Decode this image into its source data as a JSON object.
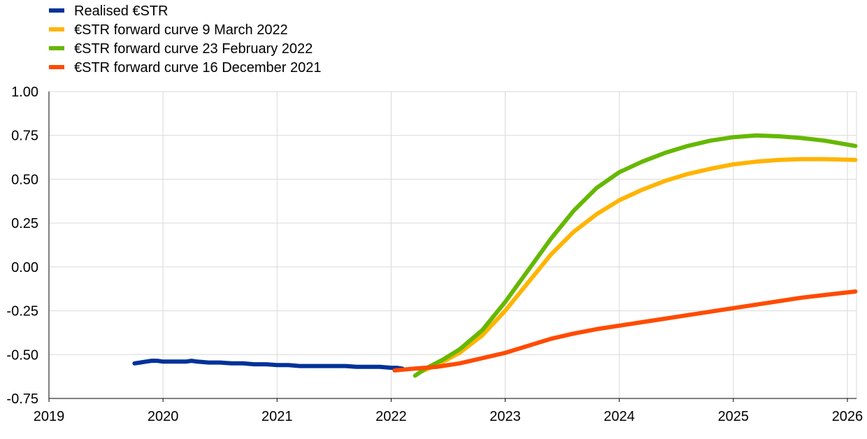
{
  "chart_data": {
    "type": "line",
    "title": "",
    "xlabel": "",
    "ylabel": "",
    "xlim": [
      2019,
      2026.08
    ],
    "ylim": [
      -0.75,
      1.0
    ],
    "x_ticks": [
      "2019",
      "2020",
      "2021",
      "2022",
      "2023",
      "2024",
      "2025",
      "2026"
    ],
    "y_ticks": [
      "1.00",
      "0.75",
      "0.50",
      "0.25",
      "0.00",
      "-0.25",
      "-0.50",
      "-0.75"
    ],
    "grid": true,
    "legend_position": "top-left",
    "series": [
      {
        "name": "Realised €STR",
        "color": "#003299",
        "x": [
          2019.75,
          2019.8,
          2019.85,
          2019.9,
          2019.95,
          2020.0,
          2020.1,
          2020.2,
          2020.25,
          2020.3,
          2020.4,
          2020.5,
          2020.6,
          2020.7,
          2020.8,
          2020.9,
          2021.0,
          2021.1,
          2021.2,
          2021.3,
          2021.4,
          2021.5,
          2021.6,
          2021.7,
          2021.8,
          2021.9,
          2022.0,
          2022.05,
          2022.1
        ],
        "y": [
          -0.55,
          -0.545,
          -0.54,
          -0.535,
          -0.535,
          -0.54,
          -0.54,
          -0.54,
          -0.535,
          -0.54,
          -0.545,
          -0.545,
          -0.55,
          -0.55,
          -0.555,
          -0.555,
          -0.56,
          -0.56,
          -0.565,
          -0.565,
          -0.565,
          -0.565,
          -0.565,
          -0.57,
          -0.57,
          -0.57,
          -0.575,
          -0.575,
          -0.58
        ]
      },
      {
        "name": "€STR forward curve 9 March 2022",
        "color": "#ffb400",
        "x": [
          2022.25,
          2022.4,
          2022.6,
          2022.8,
          2023.0,
          2023.2,
          2023.4,
          2023.6,
          2023.8,
          2024.0,
          2024.2,
          2024.4,
          2024.6,
          2024.8,
          2025.0,
          2025.2,
          2025.4,
          2025.6,
          2025.8,
          2026.07
        ],
        "y": [
          -0.6,
          -0.56,
          -0.49,
          -0.39,
          -0.25,
          -0.09,
          0.07,
          0.2,
          0.3,
          0.38,
          0.44,
          0.49,
          0.53,
          0.56,
          0.585,
          0.6,
          0.61,
          0.615,
          0.615,
          0.61
        ]
      },
      {
        "name": "€STR forward curve 23 February 2022",
        "color": "#65b800",
        "x": [
          2022.21,
          2022.3,
          2022.45,
          2022.6,
          2022.8,
          2023.0,
          2023.2,
          2023.4,
          2023.6,
          2023.8,
          2024.0,
          2024.2,
          2024.4,
          2024.6,
          2024.8,
          2025.0,
          2025.2,
          2025.4,
          2025.6,
          2025.8,
          2026.07
        ],
        "y": [
          -0.62,
          -0.58,
          -0.53,
          -0.47,
          -0.36,
          -0.2,
          -0.02,
          0.16,
          0.32,
          0.45,
          0.54,
          0.6,
          0.65,
          0.69,
          0.72,
          0.74,
          0.75,
          0.745,
          0.735,
          0.72,
          0.69
        ]
      },
      {
        "name": "€STR forward curve 16 December 2021",
        "color": "#ff4b00",
        "x": [
          2022.03,
          2022.2,
          2022.4,
          2022.6,
          2022.8,
          2023.0,
          2023.2,
          2023.4,
          2023.6,
          2023.8,
          2024.0,
          2024.2,
          2024.4,
          2024.6,
          2024.8,
          2025.0,
          2025.2,
          2025.4,
          2025.6,
          2025.8,
          2026.07
        ],
        "y": [
          -0.59,
          -0.58,
          -0.57,
          -0.55,
          -0.52,
          -0.49,
          -0.45,
          -0.41,
          -0.38,
          -0.355,
          -0.335,
          -0.315,
          -0.295,
          -0.275,
          -0.255,
          -0.235,
          -0.215,
          -0.195,
          -0.175,
          -0.16,
          -0.14
        ]
      }
    ]
  }
}
